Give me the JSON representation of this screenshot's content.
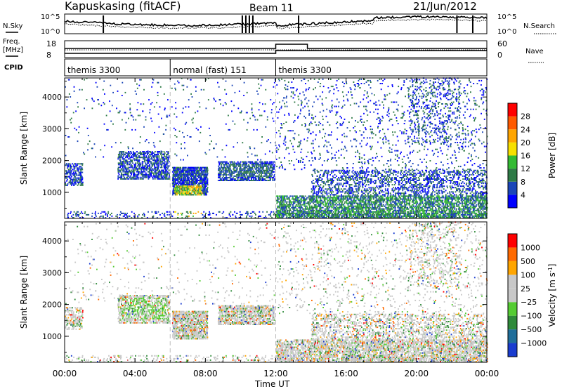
{
  "header": {
    "title": "Kapuskasing (fitACF)",
    "beam": "Beam 11",
    "date": "21/Jun/2012"
  },
  "noise_panel": {
    "left_label": "N.Sky",
    "right_label": "N.Search",
    "left_ticks": [
      "10^5",
      "10^0"
    ],
    "right_ticks": [
      "10^5",
      "10^0"
    ]
  },
  "freq_panel": {
    "left_label": "Freq.",
    "left_unit": "[MHz]",
    "right_label": "Nave",
    "left_ticks": [
      "18",
      "8"
    ],
    "right_ticks": [
      "60",
      "0"
    ]
  },
  "cpid": {
    "label": "CPID",
    "segments": [
      {
        "name": "themis 3300",
        "start_hour": 0,
        "end_hour": 6
      },
      {
        "name": "normal (fast) 151",
        "start_hour": 6,
        "end_hour": 12
      },
      {
        "name": "themis 3300",
        "start_hour": 12,
        "end_hour": 24
      }
    ]
  },
  "chart_data": [
    {
      "type": "heatmap",
      "parameter": "Power",
      "ylabel": "Slant Range [km]",
      "xlabel": "Time UT",
      "x_ticks": [
        "00:00",
        "04:00",
        "08:00",
        "12:00",
        "16:00",
        "20:00",
        "00:00"
      ],
      "y_ticks": [
        "1000",
        "2000",
        "3000",
        "4000"
      ],
      "ylim": [
        180,
        4600
      ],
      "xlim_hours": [
        0,
        24
      ],
      "colorbar": {
        "label": "Power [dB]",
        "ticks": [
          "4",
          "8",
          "12",
          "16",
          "20",
          "24",
          "28"
        ],
        "colors": [
          "#0000ff",
          "#1b46b8",
          "#2e7a46",
          "#33bb33",
          "#f7e000",
          "#ffa500",
          "#ff5a00",
          "#ff0000"
        ]
      }
    },
    {
      "type": "heatmap",
      "parameter": "Velocity",
      "ylabel": "Slant Range [km]",
      "xlabel": "Time UT",
      "x_ticks": [
        "00:00",
        "04:00",
        "08:00",
        "12:00",
        "16:00",
        "20:00",
        "00:00"
      ],
      "y_ticks": [
        "1000",
        "2000",
        "3000",
        "4000"
      ],
      "ylim": [
        180,
        4600
      ],
      "xlim_hours": [
        0,
        24
      ],
      "colorbar": {
        "label": "Velocity [m s",
        "label_sup": "-1",
        "label_end": "]",
        "ticks": [
          "1000",
          "500",
          "100",
          "25",
          "−25",
          "−100",
          "−500",
          "−1000"
        ],
        "colors": [
          "#1a3ccf",
          "#1f6e9a",
          "#2f8a3a",
          "#55cc33",
          "#c8c8c8",
          "#c8c8c8",
          "#ffa500",
          "#ff6a00",
          "#ff0000"
        ]
      }
    }
  ]
}
